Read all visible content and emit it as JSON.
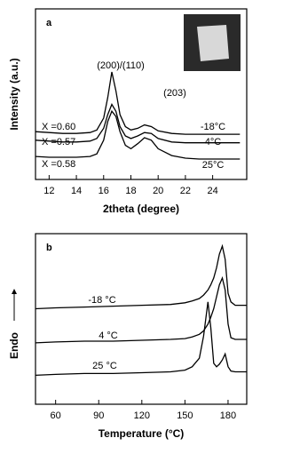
{
  "chart_data": [
    {
      "type": "line",
      "panel": "a",
      "xlabel": "2theta (degree)",
      "ylabel": "Intensity (a.u.)",
      "annotations": [
        "(200)/(110)",
        "(203)"
      ],
      "x": [
        11,
        12,
        13,
        14,
        15,
        15.5,
        16,
        16.3,
        16.6,
        16.9,
        17.2,
        17.6,
        18,
        18.5,
        19,
        19.5,
        20,
        21,
        22,
        23,
        24,
        25,
        26
      ],
      "xlim": [
        11,
        26.5
      ],
      "xticks": [
        12,
        14,
        16,
        18,
        20,
        22,
        24
      ],
      "ylim": [
        0,
        100
      ],
      "series": [
        {
          "name": "-18°C",
          "composition": "X =0.60",
          "color": "#000000",
          "values": [
            28,
            27.5,
            27,
            27,
            27.5,
            29,
            36,
            48,
            63,
            52,
            38,
            31,
            29,
            30,
            32,
            31,
            28.5,
            27,
            26.5,
            26.5,
            26.5,
            26.5,
            26.5
          ]
        },
        {
          "name": "4°C",
          "composition": "X =0.57",
          "color": "#000000",
          "values": [
            23,
            22.5,
            22,
            22,
            22.5,
            24,
            30,
            38,
            44,
            40,
            31,
            25.5,
            24,
            25.5,
            27.5,
            27,
            24,
            22,
            21.5,
            21.5,
            21.5,
            21.5,
            21.5
          ]
        },
        {
          "name": "25°C",
          "composition": "X =0.58",
          "color": "#000000",
          "values": [
            13.5,
            13,
            13,
            13,
            13.5,
            15,
            23,
            34,
            40,
            37,
            28,
            20,
            18,
            21,
            24.5,
            23,
            18,
            14,
            12.5,
            12,
            12,
            12,
            12
          ]
        }
      ]
    },
    {
      "type": "line",
      "panel": "b",
      "xlabel": "Temperature (°C)",
      "ylabel": "Endo",
      "x": [
        46,
        60,
        80,
        100,
        120,
        140,
        150,
        155,
        160,
        163,
        166,
        168,
        170,
        172,
        174,
        176,
        178,
        180,
        182,
        185,
        190,
        193
      ],
      "xlim": [
        46,
        193
      ],
      "xticks": [
        60,
        90,
        120,
        150,
        180
      ],
      "ylim": [
        0,
        100
      ],
      "series": [
        {
          "name": "-18 °C",
          "color": "#000000",
          "values": [
            56,
            56.5,
            57,
            57.5,
            58,
            58.5,
            59.5,
            60.5,
            62,
            64,
            67,
            70,
            74,
            80,
            88,
            92.7,
            85,
            65,
            60,
            58,
            58,
            58
          ]
        },
        {
          "name": "4 °C",
          "color": "#000000",
          "values": [
            36,
            36.5,
            37,
            37,
            37.5,
            38,
            38.5,
            39.5,
            41,
            43,
            47,
            51,
            56,
            63,
            70,
            74,
            67,
            47,
            39,
            38,
            38,
            38
          ]
        },
        {
          "name": "25 °C",
          "color": "#000000",
          "values": [
            17,
            17.5,
            18,
            18,
            18.5,
            19,
            20,
            22,
            27,
            40,
            60,
            45,
            24,
            22,
            23.5,
            26,
            29.5,
            22,
            19.5,
            19,
            19,
            19
          ]
        }
      ]
    }
  ]
}
